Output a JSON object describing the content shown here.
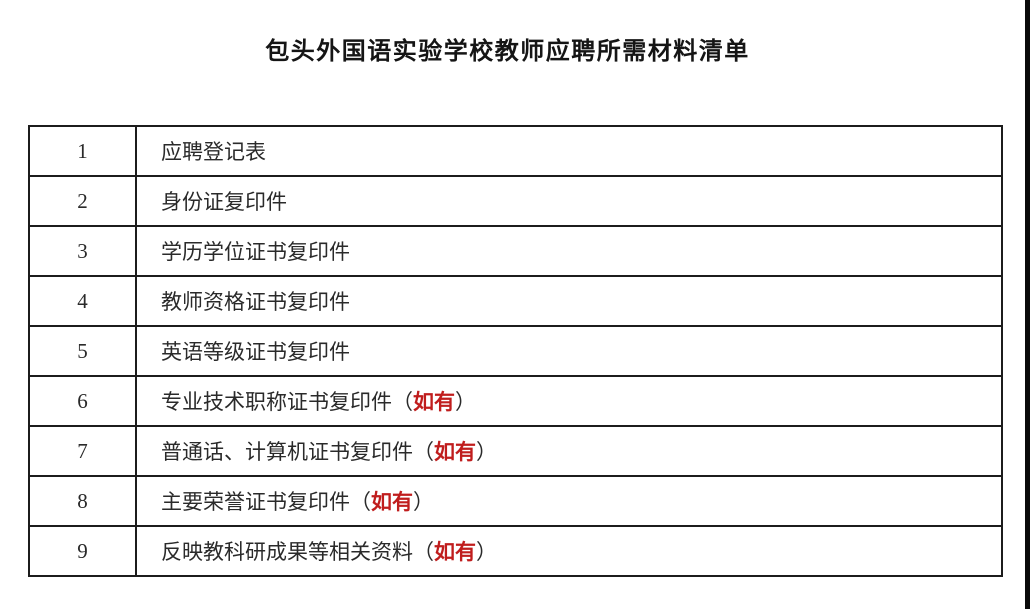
{
  "page": {
    "title": "包头外国语实验学校教师应聘所需材料清单"
  },
  "colors": {
    "text": "#2a2a2a",
    "note_red": "#c01d1d",
    "border": "#1c1c1c",
    "background": "#ffffff"
  },
  "table": {
    "paren_open": "（",
    "paren_close": "）",
    "rows": [
      {
        "no": "1",
        "item": "应聘登记表",
        "note": ""
      },
      {
        "no": "2",
        "item": "身份证复印件",
        "note": ""
      },
      {
        "no": "3",
        "item": "学历学位证书复印件",
        "note": ""
      },
      {
        "no": "4",
        "item": "教师资格证书复印件",
        "note": ""
      },
      {
        "no": "5",
        "item": "英语等级证书复印件",
        "note": ""
      },
      {
        "no": "6",
        "item": "专业技术职称证书复印件",
        "note": "如有"
      },
      {
        "no": "7",
        "item": "普通话、计算机证书复印件",
        "note": "如有"
      },
      {
        "no": "8",
        "item": "主要荣誉证书复印件",
        "note": "如有"
      },
      {
        "no": "9",
        "item": "反映教科研成果等相关资料",
        "note": "如有"
      }
    ]
  }
}
